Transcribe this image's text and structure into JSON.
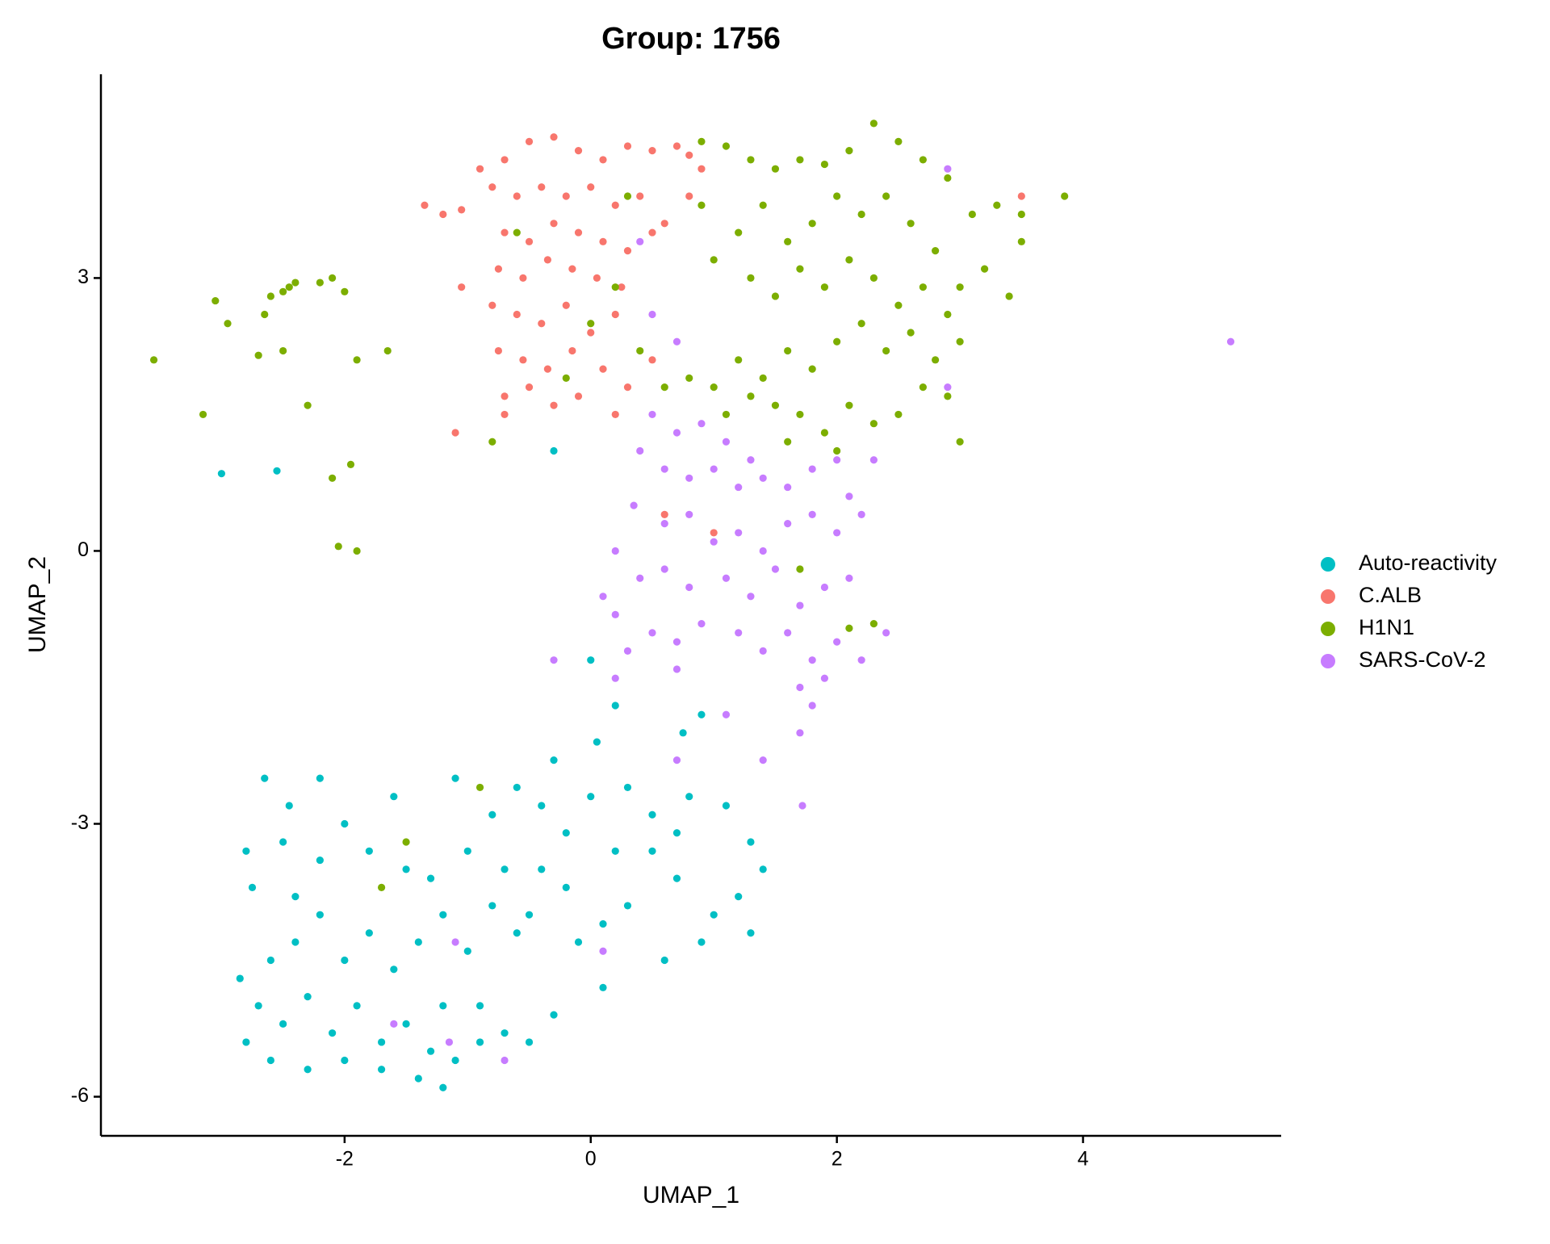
{
  "chart_data": {
    "type": "scatter",
    "title": "Group: 1756",
    "x_label": "UMAP_1",
    "y_label": "UMAP_2",
    "xlim": [
      -3.98,
      5.61
    ],
    "ylim": [
      -6.43,
      5.24
    ],
    "xticks": [
      -2,
      0,
      2,
      4
    ],
    "yticks": [
      -6,
      -3,
      0,
      3
    ],
    "grid": false,
    "legend": "right",
    "series": [
      {
        "name": "Auto-reactivity",
        "color": "#00BFC4",
        "x": [
          -3.0,
          -2.55,
          -0.3,
          0,
          0.2,
          0.75,
          0.9,
          0.05,
          -0.3,
          -2.65,
          -2.2,
          -2.45,
          -2.8,
          -2.5,
          -2.2,
          -2.75,
          -2.4,
          -2.0,
          -1.8,
          -1.6,
          -1.5,
          -1.3,
          -1.0,
          -0.8,
          -0.6,
          -0.4,
          -0.2,
          0.0,
          0.3,
          0.5,
          0.8,
          1.1,
          1.3,
          1.4,
          1.2,
          1.0,
          0.7,
          0.5,
          0.3,
          0.1,
          -0.2,
          -0.4,
          -0.6,
          -0.8,
          -1.0,
          -1.2,
          -1.4,
          -1.6,
          -1.8,
          -2.0,
          -2.2,
          -2.4,
          -2.6,
          -2.85,
          -2.7,
          -2.5,
          -2.3,
          -2.1,
          -1.9,
          -1.7,
          -1.5,
          -1.3,
          -1.1,
          -0.9,
          -0.7,
          -0.5,
          -0.3,
          0.1,
          -0.9,
          -1.2,
          -2.6,
          -2.3,
          -2.0,
          -1.7,
          -1.4,
          -1.2,
          -2.8,
          0.6,
          0.9,
          1.3,
          -0.1,
          -0.5,
          -1.1,
          -0.7,
          0.2,
          0.7
        ],
        "y": [
          0.85,
          0.88,
          1.1,
          -1.2,
          -1.7,
          -2.0,
          -1.8,
          -2.1,
          -2.3,
          -2.5,
          -2.5,
          -2.8,
          -3.3,
          -3.2,
          -3.4,
          -3.7,
          -3.8,
          -3.0,
          -3.3,
          -2.7,
          -3.5,
          -3.6,
          -3.3,
          -2.9,
          -2.6,
          -2.8,
          -3.1,
          -2.7,
          -2.6,
          -2.9,
          -2.7,
          -2.8,
          -3.2,
          -3.5,
          -3.8,
          -4.0,
          -3.6,
          -3.3,
          -3.9,
          -4.1,
          -3.7,
          -3.5,
          -4.2,
          -3.9,
          -4.4,
          -4.0,
          -4.3,
          -4.6,
          -4.2,
          -4.5,
          -4.0,
          -4.3,
          -4.5,
          -4.7,
          -5.0,
          -5.2,
          -4.9,
          -5.3,
          -5.0,
          -5.4,
          -5.2,
          -5.5,
          -5.6,
          -5.4,
          -5.3,
          -5.4,
          -5.1,
          -4.8,
          -5.0,
          -5.0,
          -5.6,
          -5.7,
          -5.6,
          -5.7,
          -5.8,
          -5.9,
          -5.4,
          -4.5,
          -4.3,
          -4.2,
          -4.3,
          -4.0,
          -2.5,
          -3.5,
          -3.3,
          -3.1
        ]
      },
      {
        "name": "C.ALB",
        "color": "#F8766D",
        "x": [
          -1.35,
          -1.2,
          -1.05,
          -0.8,
          -0.9,
          -0.7,
          -0.5,
          -0.3,
          -0.1,
          0.1,
          0.3,
          0.5,
          0.7,
          0.9,
          -0.6,
          -0.4,
          -0.2,
          0.0,
          0.2,
          0.4,
          0.6,
          0.8,
          -0.7,
          -0.5,
          -0.3,
          -0.1,
          0.1,
          0.3,
          0.5,
          -0.75,
          -0.55,
          -0.35,
          -0.15,
          0.05,
          0.25,
          -0.8,
          -0.6,
          -0.4,
          -0.2,
          0.0,
          0.2,
          -0.75,
          -0.55,
          -0.35,
          -0.15,
          0.1,
          0.3,
          -0.7,
          -0.5,
          -0.3,
          -0.1,
          0.5,
          0.2,
          -0.7,
          -1.05,
          1.0,
          0.6,
          -1.1,
          3.5,
          0.8
        ],
        "y": [
          3.8,
          3.7,
          3.75,
          4.0,
          4.2,
          4.3,
          4.5,
          4.55,
          4.4,
          4.3,
          4.45,
          4.4,
          4.45,
          4.2,
          3.9,
          4.0,
          3.9,
          4.0,
          3.8,
          3.9,
          3.6,
          3.9,
          3.5,
          3.4,
          3.6,
          3.5,
          3.4,
          3.3,
          3.5,
          3.1,
          3.0,
          3.2,
          3.1,
          3.0,
          2.9,
          2.7,
          2.6,
          2.5,
          2.7,
          2.4,
          2.6,
          2.2,
          2.1,
          2.0,
          2.2,
          2.0,
          1.8,
          1.7,
          1.8,
          1.6,
          1.7,
          2.1,
          1.5,
          1.5,
          2.9,
          0.2,
          0.4,
          1.3,
          3.9,
          4.35
        ]
      },
      {
        "name": "H1N1",
        "color": "#7CAE00",
        "x": [
          -3.55,
          -3.15,
          -2.95,
          -3.05,
          -2.7,
          -2.65,
          -2.6,
          -2.5,
          -2.45,
          -2.4,
          -2.5,
          -2.3,
          -2.2,
          -2.1,
          -2.0,
          -1.9,
          -1.65,
          -2.1,
          -1.95,
          -2.05,
          -1.9,
          -0.8,
          -1.7,
          -1.5,
          -0.9,
          1.7,
          2.3,
          2.1,
          0.9,
          1.1,
          1.3,
          1.5,
          1.7,
          1.9,
          2.1,
          2.3,
          2.5,
          2.7,
          2.9,
          3.1,
          3.3,
          3.5,
          3.85,
          3.5,
          3.4,
          3.2,
          3.0,
          2.8,
          2.6,
          2.4,
          2.2,
          2.0,
          1.8,
          1.6,
          1.4,
          1.2,
          1.0,
          1.3,
          1.5,
          1.7,
          1.9,
          2.1,
          2.3,
          2.5,
          2.7,
          2.9,
          3.0,
          2.8,
          2.6,
          2.4,
          2.2,
          2.0,
          1.8,
          1.6,
          1.4,
          1.2,
          1.0,
          0.8,
          0.6,
          1.1,
          1.3,
          1.5,
          1.7,
          1.9,
          2.1,
          2.3,
          2.5,
          2.7,
          2.9,
          3.0,
          2.0,
          1.6,
          0.4,
          0.2,
          0.0,
          -0.2,
          0.9,
          0.3,
          -0.6
        ],
        "y": [
          2.1,
          1.5,
          2.5,
          2.75,
          2.15,
          2.6,
          2.8,
          2.85,
          2.9,
          2.95,
          2.2,
          1.6,
          2.95,
          3.0,
          2.85,
          2.1,
          2.2,
          0.8,
          0.95,
          0.05,
          0.0,
          1.2,
          -3.7,
          -3.2,
          -2.6,
          -0.2,
          -0.8,
          -0.85,
          4.5,
          4.45,
          4.3,
          4.2,
          4.3,
          4.25,
          4.4,
          4.7,
          4.5,
          4.3,
          4.1,
          3.7,
          3.8,
          3.7,
          3.9,
          3.4,
          2.8,
          3.1,
          2.9,
          3.3,
          3.6,
          3.9,
          3.7,
          3.9,
          3.6,
          3.4,
          3.8,
          3.5,
          3.2,
          3.0,
          2.8,
          3.1,
          2.9,
          3.2,
          3.0,
          2.7,
          2.9,
          2.6,
          2.3,
          2.1,
          2.4,
          2.2,
          2.5,
          2.3,
          2.0,
          2.2,
          1.9,
          2.1,
          1.8,
          1.9,
          1.8,
          1.5,
          1.7,
          1.6,
          1.5,
          1.3,
          1.6,
          1.4,
          1.5,
          1.8,
          1.7,
          1.2,
          1.1,
          1.2,
          2.2,
          2.9,
          2.5,
          1.9,
          3.8,
          3.9,
          3.5
        ]
      },
      {
        "name": "SARS-CoV-2",
        "color": "#C77CFF",
        "x": [
          0.5,
          0.7,
          0.9,
          1.1,
          1.3,
          0.4,
          0.6,
          0.8,
          1.0,
          1.2,
          1.4,
          1.6,
          1.8,
          2.0,
          2.1,
          2.3,
          0.35,
          0.6,
          0.8,
          1.0,
          1.2,
          1.4,
          1.6,
          1.8,
          2.0,
          2.2,
          0.4,
          0.6,
          0.8,
          1.1,
          1.3,
          1.5,
          1.7,
          1.9,
          2.1,
          0.2,
          0.5,
          0.7,
          0.9,
          1.2,
          1.4,
          1.6,
          1.8,
          2.0,
          2.2,
          2.4,
          1.7,
          1.9,
          1.8,
          1.1,
          0.7,
          0.2,
          0.3,
          -0.3,
          0.1,
          0.2,
          1.7,
          1.4,
          1.72,
          0.7,
          5.2,
          2.9,
          2.9,
          -1.1,
          0.1,
          -1.6,
          -1.15,
          -0.7,
          0.5,
          0.7,
          0.4
        ],
        "y": [
          1.5,
          1.3,
          1.4,
          1.2,
          1.0,
          1.1,
          0.9,
          0.8,
          0.9,
          0.7,
          0.8,
          0.7,
          0.9,
          1.0,
          0.6,
          1.0,
          0.5,
          0.3,
          0.4,
          0.1,
          0.2,
          0.0,
          0.3,
          0.4,
          0.2,
          0.4,
          -0.3,
          -0.2,
          -0.4,
          -0.3,
          -0.5,
          -0.2,
          -0.6,
          -0.4,
          -0.3,
          -0.7,
          -0.9,
          -1.0,
          -0.8,
          -0.9,
          -1.1,
          -0.9,
          -1.2,
          -1.0,
          -1.2,
          -0.9,
          -1.5,
          -1.4,
          -1.7,
          -1.8,
          -1.3,
          -1.4,
          -1.1,
          -1.2,
          -0.5,
          0.0,
          -2.0,
          -2.3,
          -2.8,
          -2.3,
          2.3,
          4.2,
          1.8,
          -4.3,
          -4.4,
          -5.2,
          -5.4,
          -5.6,
          2.6,
          2.3,
          3.4
        ]
      }
    ]
  }
}
